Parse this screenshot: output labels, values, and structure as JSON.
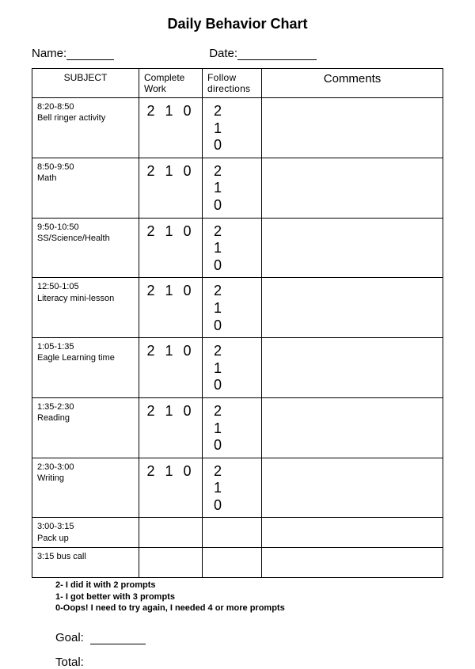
{
  "title": "Daily Behavior Chart",
  "header": {
    "name_label": "Name:",
    "date_label": "Date:"
  },
  "table": {
    "columns": {
      "subject": "SUBJECT",
      "complete_work": "Complete Work",
      "follow_directions": "Follow directions",
      "comments": "Comments"
    },
    "rows": [
      {
        "time": "8:20-8:50",
        "subject": "Bell ringer activity",
        "cw": "2 1 0",
        "fd": "2 1 0"
      },
      {
        "time": "8:50-9:50",
        "subject": "Math",
        "cw": "2 1 0",
        "fd": "2 1 0"
      },
      {
        "time": "9:50-10:50",
        "subject": "SS/Science/Health",
        "cw": "2 1 0",
        "fd": "2 1 0"
      },
      {
        "time": "12:50-1:05",
        "subject": "Literacy mini-lesson",
        "cw": "2 1 0",
        "fd": "2 1 0"
      },
      {
        "time": "1:05-1:35",
        "subject": "Eagle Learning time",
        "cw": "2 1 0",
        "fd": "2 1 0"
      },
      {
        "time": "1:35-2:30",
        "subject": "Reading",
        "cw": "2 1 0",
        "fd": "2 1 0"
      },
      {
        "time": "2:30-3:00",
        "subject": "Writing",
        "cw": "2 1 0",
        "fd": "2 1 0"
      },
      {
        "time": "3:00-3:15",
        "subject": "Pack up",
        "cw": "",
        "fd": ""
      },
      {
        "time": "3:15",
        "subject": "bus call",
        "cw": "",
        "fd": ""
      }
    ]
  },
  "legend": {
    "l2": "2- I did it with 2 prompts",
    "l1": "1- I got better with 3 prompts",
    "l0": "0-Oops! I need to try again, I needed 4 or more prompts"
  },
  "footer": {
    "goal_label": "Goal:",
    "total_label": "Total:"
  }
}
